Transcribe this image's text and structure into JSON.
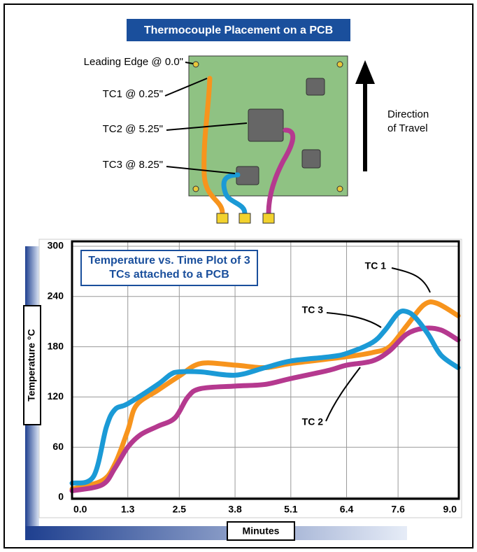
{
  "diagram": {
    "title": "Thermocouple Placement on a PCB",
    "labels": [
      "Leading Edge @ 0.0\"",
      "TC1 @ 0.25\"",
      "TC2 @ 5.25\"",
      "TC3 @ 8.25\""
    ],
    "direction": [
      "Direction",
      "of Travel"
    ]
  },
  "chart_data": {
    "type": "line",
    "title": "Temperature vs. Time Plot of 3 TCs attached to a PCB",
    "x_label": "Minutes",
    "y_label": "Temperature °C",
    "xlim": [
      0,
      9
    ],
    "ylim": [
      0,
      300
    ],
    "xticks": [
      {
        "value": 0,
        "label": "0.0"
      },
      1.3,
      2.5,
      3.8,
      5.1,
      6.4,
      7.6,
      {
        "value": 9,
        "label": "9.0"
      }
    ],
    "yticks": [
      0,
      60,
      120,
      180,
      240,
      300
    ],
    "grid": true,
    "series": [
      {
        "name": "TC 1",
        "color": "#f7941d",
        "x": [
          0,
          0.7,
          1.0,
          1.3,
          1.5,
          2.0,
          2.5,
          3.0,
          3.8,
          4.5,
          5.1,
          6.4,
          7.0,
          7.4,
          7.8,
          8.2,
          8.5,
          9.0
        ],
        "values": [
          10,
          20,
          40,
          80,
          110,
          128,
          145,
          160,
          158,
          155,
          160,
          168,
          173,
          180,
          205,
          230,
          232,
          217
        ]
      },
      {
        "name": "TC 2",
        "color": "#b5398f",
        "x": [
          0,
          0.7,
          1.0,
          1.3,
          1.6,
          2.0,
          2.4,
          2.7,
          3.0,
          3.8,
          4.5,
          5.1,
          6.0,
          6.4,
          7.0,
          7.4,
          7.8,
          8.2,
          8.6,
          9.0
        ],
        "values": [
          8,
          15,
          35,
          60,
          75,
          85,
          95,
          120,
          130,
          133,
          135,
          142,
          152,
          158,
          163,
          175,
          195,
          202,
          200,
          188
        ]
      },
      {
        "name": "TC 3",
        "color": "#1b9ad6",
        "x": [
          0,
          0.5,
          0.8,
          1.0,
          1.3,
          2.0,
          2.3,
          2.5,
          3.0,
          3.8,
          4.5,
          5.1,
          6.0,
          6.4,
          7.0,
          7.3,
          7.6,
          7.8,
          8.0,
          8.3,
          8.6,
          9.0
        ],
        "values": [
          17,
          25,
          84,
          105,
          112,
          135,
          147,
          150,
          150,
          146,
          155,
          163,
          168,
          172,
          185,
          200,
          220,
          222,
          215,
          195,
          170,
          155
        ]
      }
    ]
  }
}
